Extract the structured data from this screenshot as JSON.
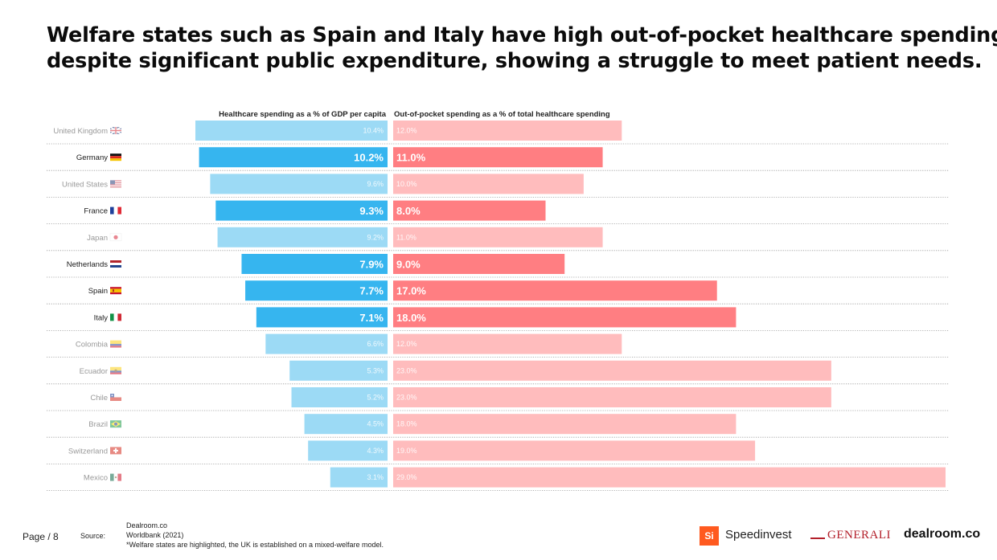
{
  "title": {
    "line1": "Welfare states such as Spain and Italy have high out-of-pocket healthcare spending",
    "line2": "despite significant public expenditure, showing a struggle to meet patient needs."
  },
  "colors": {
    "gdp_highlight": "#36b5ef",
    "gdp_muted": "#9cdaf5",
    "oop_highlight": "#ff7e82",
    "oop_muted": "#ffbcbd",
    "highlight_label": "#1a1a1a",
    "muted_label": "#999999"
  },
  "chart_data": {
    "type": "bar",
    "layout": "diverging-horizontal",
    "series": [
      {
        "name": "Healthcare spending as a % of GDP per capita",
        "unit": "%",
        "xlim": [
          0,
          12
        ],
        "values": [
          10.4,
          10.2,
          9.6,
          9.3,
          9.2,
          7.9,
          7.7,
          7.1,
          6.6,
          5.3,
          5.2,
          4.5,
          4.3,
          3.1
        ],
        "labels": [
          "10.4%",
          "10.2%",
          "9.6%",
          "9.3%",
          "9.2%",
          "7.9%",
          "7.7%",
          "7.1%",
          "6.6%",
          "5.3%",
          "5.2%",
          "4.5%",
          "4.3%",
          "3.1%"
        ]
      },
      {
        "name": "Out-of-pocket spending as a % of total healthcare spending",
        "unit": "%",
        "xlim": [
          0,
          29
        ],
        "values": [
          12.0,
          11.0,
          10.0,
          8.0,
          11.0,
          9.0,
          17.0,
          18.0,
          12.0,
          23.0,
          23.0,
          18.0,
          19.0,
          29.0
        ],
        "labels": [
          "12.0%",
          "11.0%",
          "10.0%",
          "8.0%",
          "11.0%",
          "9.0%",
          "17.0%",
          "18.0%",
          "12.0%",
          "23.0%",
          "23.0%",
          "18.0%",
          "19.0%",
          "29.0%"
        ]
      }
    ],
    "categories": [
      "United Kingdom",
      "Germany",
      "United States",
      "France",
      "Japan",
      "Netherlands",
      "Spain",
      "Italy",
      "Colombia",
      "Ecuador",
      "Chile",
      "Brazil",
      "Switzerland",
      "Mexico"
    ],
    "highlighted": [
      false,
      true,
      false,
      true,
      false,
      true,
      true,
      true,
      false,
      false,
      false,
      false,
      false,
      false
    ],
    "flags": [
      "uk-flag-icon",
      "germany-flag-icon",
      "us-flag-icon",
      "france-flag-icon",
      "japan-flag-icon",
      "netherlands-flag-icon",
      "spain-flag-icon",
      "italy-flag-icon",
      "colombia-flag-icon",
      "ecuador-flag-icon",
      "chile-flag-icon",
      "brazil-flag-icon",
      "switzerland-flag-icon",
      "mexico-flag-icon"
    ],
    "grid": false,
    "row_separators": "dotted"
  },
  "footer": {
    "page": "Page / 8",
    "source_label": "Source:",
    "sources": [
      "Dealroom.co",
      "Worldbank (2021)",
      "*Welfare states are highlighted, the UK is established on a mixed-welfare model."
    ]
  },
  "logos": {
    "speedinvest_mark": "Si",
    "speedinvest": "Speedinvest",
    "generali": "GENERALI",
    "dealroom": "dealroom.co"
  }
}
